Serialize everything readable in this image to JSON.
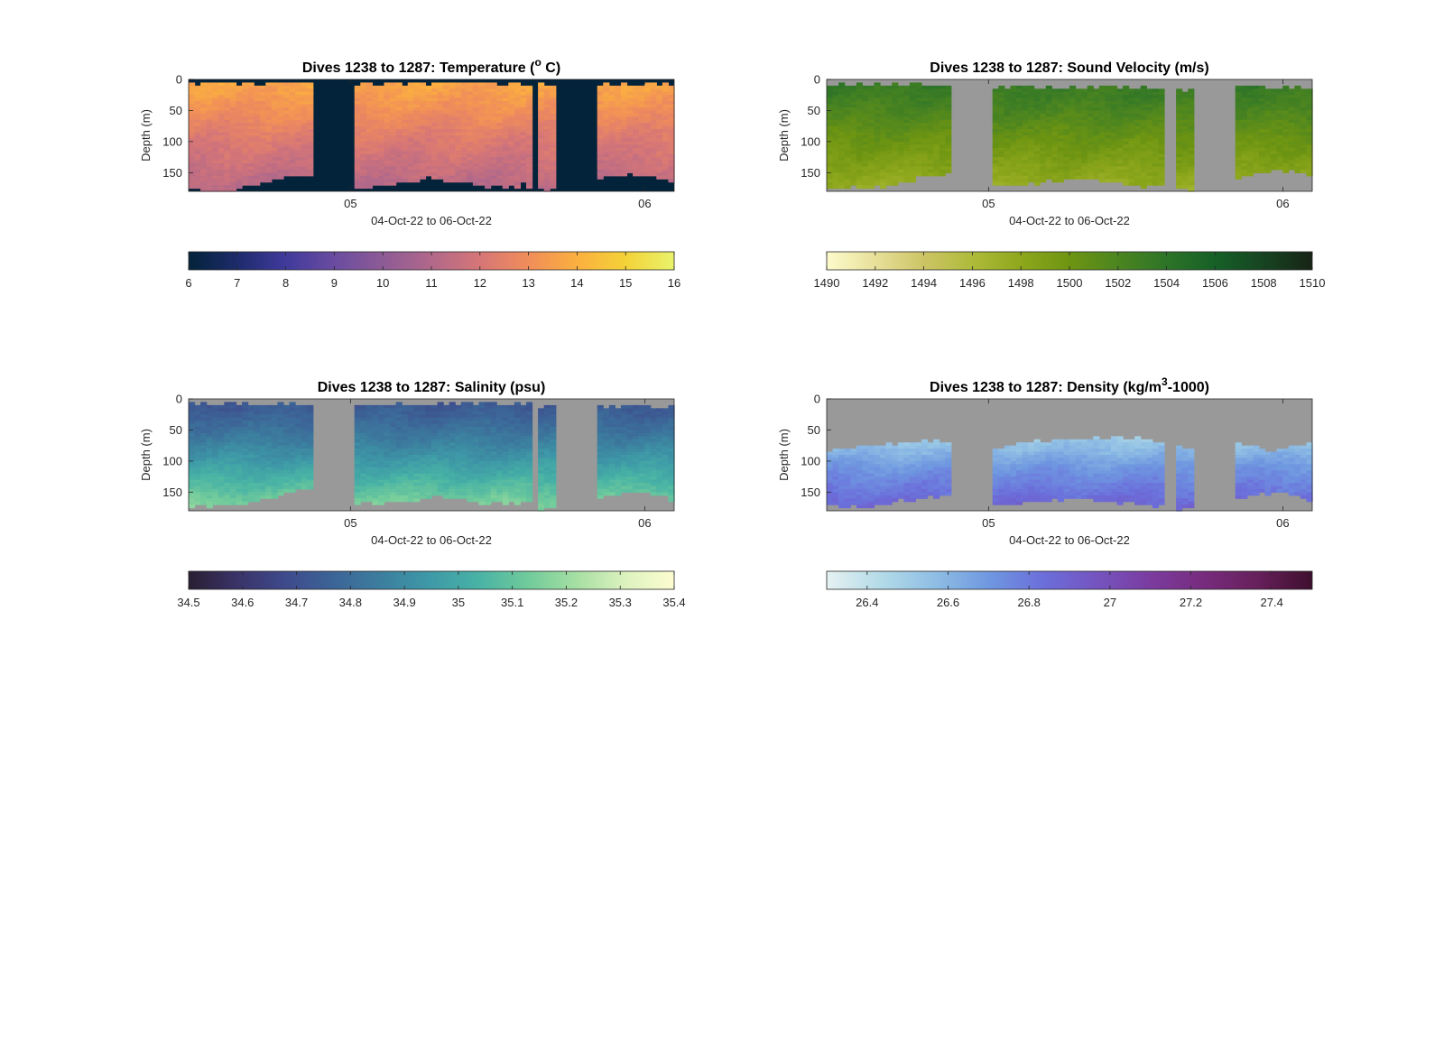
{
  "figure": {
    "background": "#ffffff",
    "axis_color": "#262626",
    "missing_color": "#999999"
  },
  "chart_data": [
    {
      "type": "heatmap",
      "title": "Dives 1238 to 1287: Temperature (° C)",
      "title_parts": [
        "Dives 1238 to 1287: Temperature (",
        "o",
        " C)"
      ],
      "xlabel": "04-Oct-22 to 06-Oct-22",
      "ylabel": "Depth (m)",
      "xlim_days": [
        4.45,
        6.1
      ],
      "ylim": [
        0,
        180
      ],
      "y_reversed": true,
      "x_ticks": [
        {
          "at": 5.0,
          "label": "05"
        },
        {
          "at": 6.0,
          "label": "06"
        }
      ],
      "y_ticks": [
        {
          "at": 0,
          "label": "0"
        },
        {
          "at": 50,
          "label": "50"
        },
        {
          "at": 100,
          "label": "100"
        },
        {
          "at": 150,
          "label": "150"
        }
      ],
      "missing_color": "#03233a",
      "colorbar": {
        "clim": [
          6,
          16
        ],
        "ticks": [
          "6",
          "7",
          "8",
          "9",
          "10",
          "11",
          "12",
          "13",
          "14",
          "15",
          "16"
        ],
        "colors": [
          "#03233a",
          "#1d2b6b",
          "#403a9c",
          "#6a4ca0",
          "#8d5b96",
          "#b1688a",
          "#d67677",
          "#f08d5a",
          "#fbb03f",
          "#f4d238",
          "#e9f36b"
        ]
      },
      "field": {
        "surface": 13.7,
        "mid": 12.3,
        "deep": 11.1,
        "mid_depth": 90
      },
      "valid_ranges": [
        [
          4.45,
          4.88
        ],
        [
          5.01,
          5.61
        ],
        [
          5.64,
          5.7
        ],
        [
          5.84,
          6.1
        ]
      ],
      "bottom_depth": [
        [
          4.45,
          178
        ],
        [
          4.6,
          178
        ],
        [
          4.7,
          165
        ],
        [
          4.8,
          155
        ],
        [
          4.88,
          150
        ],
        [
          5.01,
          175
        ],
        [
          5.1,
          170
        ],
        [
          5.2,
          165
        ],
        [
          5.25,
          158
        ],
        [
          5.35,
          165
        ],
        [
          5.5,
          172
        ],
        [
          5.6,
          170
        ],
        [
          5.64,
          176
        ],
        [
          5.7,
          176
        ],
        [
          5.84,
          160
        ],
        [
          5.95,
          153
        ],
        [
          6.05,
          158
        ],
        [
          6.1,
          165
        ]
      ],
      "top_depth": [
        [
          4.45,
          8
        ],
        [
          4.55,
          5
        ],
        [
          4.7,
          8
        ],
        [
          4.88,
          5
        ],
        [
          5.01,
          8
        ],
        [
          5.3,
          6
        ],
        [
          5.6,
          6
        ],
        [
          5.64,
          8
        ],
        [
          5.84,
          6
        ],
        [
          6.1,
          8
        ]
      ]
    },
    {
      "type": "heatmap",
      "title": "Dives 1238 to 1287: Sound Velocity (m/s)",
      "xlabel": "04-Oct-22 to 06-Oct-22",
      "ylabel": "Depth (m)",
      "xlim_days": [
        4.45,
        6.1
      ],
      "ylim": [
        0,
        180
      ],
      "y_reversed": true,
      "x_ticks": [
        {
          "at": 5.0,
          "label": "05"
        },
        {
          "at": 6.0,
          "label": "06"
        }
      ],
      "y_ticks": [
        {
          "at": 0,
          "label": "0"
        },
        {
          "at": 50,
          "label": "50"
        },
        {
          "at": 100,
          "label": "100"
        },
        {
          "at": 150,
          "label": "150"
        }
      ],
      "missing_color": "#999999",
      "colorbar": {
        "clim": [
          1490,
          1510
        ],
        "ticks": [
          "1490",
          "1492",
          "1494",
          "1496",
          "1498",
          "1500",
          "1502",
          "1504",
          "1506",
          "1508",
          "1510"
        ],
        "colors": [
          "#fdfbcc",
          "#e7e09a",
          "#cdc465",
          "#aebb3a",
          "#8ea71c",
          "#6e9512",
          "#4c8520",
          "#2d7428",
          "#166027",
          "#174422",
          "#172415"
        ]
      },
      "field": {
        "surface": 1503.5,
        "mid": 1500.5,
        "deep": 1497.3,
        "mid_depth": 90
      },
      "valid_ranges": [
        [
          4.45,
          4.88
        ],
        [
          5.01,
          5.6
        ],
        [
          5.63,
          5.7
        ],
        [
          5.84,
          6.1
        ]
      ],
      "bottom_depth": [
        [
          4.45,
          175
        ],
        [
          4.6,
          175
        ],
        [
          4.7,
          165
        ],
        [
          4.8,
          155
        ],
        [
          4.88,
          150
        ],
        [
          5.01,
          175
        ],
        [
          5.1,
          170
        ],
        [
          5.2,
          165
        ],
        [
          5.3,
          160
        ],
        [
          5.45,
          168
        ],
        [
          5.6,
          172
        ],
        [
          5.63,
          178
        ],
        [
          5.7,
          178
        ],
        [
          5.84,
          160
        ],
        [
          5.95,
          148
        ],
        [
          6.05,
          150
        ],
        [
          6.1,
          158
        ]
      ],
      "top_depth": [
        [
          4.45,
          10
        ],
        [
          4.55,
          8
        ],
        [
          4.7,
          10
        ],
        [
          4.88,
          8
        ],
        [
          5.01,
          14
        ],
        [
          5.3,
          12
        ],
        [
          5.6,
          12
        ],
        [
          5.63,
          18
        ],
        [
          5.84,
          12
        ],
        [
          6.1,
          14
        ]
      ]
    },
    {
      "type": "heatmap",
      "title": "Dives 1238 to 1287: Salinity (psu)",
      "xlabel": "04-Oct-22 to 06-Oct-22",
      "ylabel": "Depth (m)",
      "xlim_days": [
        4.45,
        6.1
      ],
      "ylim": [
        0,
        180
      ],
      "y_reversed": true,
      "x_ticks": [
        {
          "at": 5.0,
          "label": "05"
        },
        {
          "at": 6.0,
          "label": "06"
        }
      ],
      "y_ticks": [
        {
          "at": 0,
          "label": "0"
        },
        {
          "at": 50,
          "label": "50"
        },
        {
          "at": 100,
          "label": "100"
        },
        {
          "at": 150,
          "label": "150"
        }
      ],
      "missing_color": "#999999",
      "colorbar": {
        "clim": [
          34.5,
          35.4
        ],
        "ticks": [
          "34.5",
          "34.6",
          "34.7",
          "34.8",
          "34.9",
          "35",
          "35.1",
          "35.2",
          "35.3",
          "35.4"
        ],
        "colors": [
          "#291f33",
          "#3a3368",
          "#3e4a8c",
          "#3c6597",
          "#3c7f9f",
          "#3e9aa7",
          "#49b3a5",
          "#71cb9b",
          "#a7dfa3",
          "#ddf2bf",
          "#fdfdd0"
        ]
      },
      "field": {
        "surface": 34.72,
        "mid": 34.92,
        "deep": 35.18,
        "mid_depth": 90
      },
      "valid_ranges": [
        [
          4.45,
          4.88
        ],
        [
          5.01,
          5.61
        ],
        [
          5.64,
          5.7
        ],
        [
          5.84,
          6.1
        ]
      ],
      "bottom_depth": [
        [
          4.45,
          172
        ],
        [
          4.6,
          172
        ],
        [
          4.7,
          160
        ],
        [
          4.8,
          150
        ],
        [
          4.88,
          143
        ],
        [
          5.01,
          170
        ],
        [
          5.1,
          168
        ],
        [
          5.2,
          163
        ],
        [
          5.3,
          158
        ],
        [
          5.45,
          168
        ],
        [
          5.6,
          168
        ],
        [
          5.64,
          176
        ],
        [
          5.7,
          176
        ],
        [
          5.84,
          158
        ],
        [
          5.95,
          150
        ],
        [
          6.05,
          152
        ],
        [
          6.1,
          165
        ]
      ],
      "top_depth": [
        [
          4.45,
          10
        ],
        [
          4.55,
          8
        ],
        [
          4.7,
          10
        ],
        [
          4.88,
          8
        ],
        [
          5.01,
          10
        ],
        [
          5.3,
          8
        ],
        [
          5.6,
          8
        ],
        [
          5.64,
          14
        ],
        [
          5.84,
          10
        ],
        [
          6.1,
          12
        ]
      ]
    },
    {
      "type": "heatmap",
      "title_parts": [
        "Dives 1238 to 1287: Density (kg/m",
        "3",
        "-1000)"
      ],
      "title": "Dives 1238 to 1287: Density (kg/m3-1000)",
      "xlabel": "04-Oct-22 to 06-Oct-22",
      "ylabel": "Depth (m)",
      "xlim_days": [
        4.45,
        6.1
      ],
      "ylim": [
        0,
        180
      ],
      "y_reversed": true,
      "x_ticks": [
        {
          "at": 5.0,
          "label": "05"
        },
        {
          "at": 6.0,
          "label": "06"
        }
      ],
      "y_ticks": [
        {
          "at": 0,
          "label": "0"
        },
        {
          "at": 50,
          "label": "50"
        },
        {
          "at": 100,
          "label": "100"
        },
        {
          "at": 150,
          "label": "150"
        }
      ],
      "missing_color": "#999999",
      "colorbar": {
        "clim": [
          26.3,
          27.5
        ],
        "ticks": [
          "26.4",
          "26.6",
          "26.8",
          "27",
          "27.2",
          "27.4"
        ],
        "colors": [
          "#e6f1f1",
          "#b3dbe8",
          "#8fbee4",
          "#6f98e0",
          "#6b6fdb",
          "#7554c0",
          "#7b3c9f",
          "#772b7d",
          "#66205a",
          "#3e0f2e"
        ]
      },
      "field": {
        "surface": 26.35,
        "mid": 26.7,
        "deep": 26.9,
        "mid_depth": 110
      },
      "valid_ranges": [
        [
          4.45,
          4.88
        ],
        [
          5.01,
          5.6
        ],
        [
          5.63,
          5.7
        ],
        [
          5.84,
          6.1
        ]
      ],
      "bottom_depth": [
        [
          4.45,
          172
        ],
        [
          4.6,
          175
        ],
        [
          4.7,
          165
        ],
        [
          4.8,
          158
        ],
        [
          4.88,
          153
        ],
        [
          5.01,
          172
        ],
        [
          5.1,
          168
        ],
        [
          5.2,
          164
        ],
        [
          5.3,
          160
        ],
        [
          5.45,
          168
        ],
        [
          5.6,
          172
        ],
        [
          5.63,
          176
        ],
        [
          5.7,
          176
        ],
        [
          5.84,
          160
        ],
        [
          5.95,
          150
        ],
        [
          6.05,
          152
        ],
        [
          6.1,
          165
        ]
      ],
      "top_depth": [
        [
          4.45,
          85
        ],
        [
          4.55,
          75
        ],
        [
          4.7,
          70
        ],
        [
          4.88,
          68
        ],
        [
          5.01,
          82
        ],
        [
          5.1,
          72
        ],
        [
          5.25,
          66
        ],
        [
          5.45,
          62
        ],
        [
          5.6,
          68
        ],
        [
          5.63,
          75
        ],
        [
          5.7,
          78
        ],
        [
          5.84,
          70
        ],
        [
          5.95,
          82
        ],
        [
          6.05,
          75
        ],
        [
          6.1,
          72
        ]
      ]
    }
  ]
}
